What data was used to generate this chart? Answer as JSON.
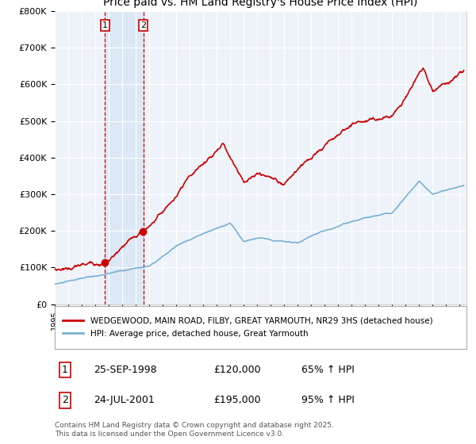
{
  "title": "WEDGEWOOD, MAIN ROAD, FILBY, GREAT YARMOUTH, NR29 3HS",
  "subtitle": "Price paid vs. HM Land Registry's House Price Index (HPI)",
  "title_fontsize": 10,
  "subtitle_fontsize": 9,
  "background_color": "#ffffff",
  "plot_bg_color": "#eef3fa",
  "grid_color": "#ffffff",
  "red_line_color": "#cc0000",
  "blue_line_color": "#7ab0d4",
  "marker_color": "#cc0000",
  "vline_color": "#cc0000",
  "highlight_color": "#dce8f5",
  "sale1_date": 1998.73,
  "sale1_price": 120000,
  "sale1_label": "1",
  "sale2_date": 2001.56,
  "sale2_price": 195000,
  "sale2_label": "2",
  "ylim": [
    0,
    800000
  ],
  "xlim_start": 1995,
  "xlim_end": 2025.5,
  "ytick_values": [
    0,
    100000,
    200000,
    300000,
    400000,
    500000,
    600000,
    700000,
    800000
  ],
  "ytick_labels": [
    "£0",
    "£100K",
    "£200K",
    "£300K",
    "£400K",
    "£500K",
    "£600K",
    "£700K",
    "£800K"
  ],
  "xtick_years": [
    1995,
    1996,
    1997,
    1998,
    1999,
    2000,
    2001,
    2002,
    2003,
    2004,
    2005,
    2006,
    2007,
    2008,
    2009,
    2010,
    2011,
    2012,
    2013,
    2014,
    2015,
    2016,
    2017,
    2018,
    2019,
    2020,
    2021,
    2022,
    2023,
    2024,
    2025
  ],
  "legend_red_label": "WEDGEWOOD, MAIN ROAD, FILBY, GREAT YARMOUTH, NR29 3HS (detached house)",
  "legend_blue_label": "HPI: Average price, detached house, Great Yarmouth",
  "table_row1": [
    "1",
    "25-SEP-1998",
    "£120,000",
    "65% ↑ HPI"
  ],
  "table_row2": [
    "2",
    "24-JUL-2001",
    "£195,000",
    "95% ↑ HPI"
  ],
  "footnote": "Contains HM Land Registry data © Crown copyright and database right 2025.\nThis data is licensed under the Open Government Licence v3.0."
}
